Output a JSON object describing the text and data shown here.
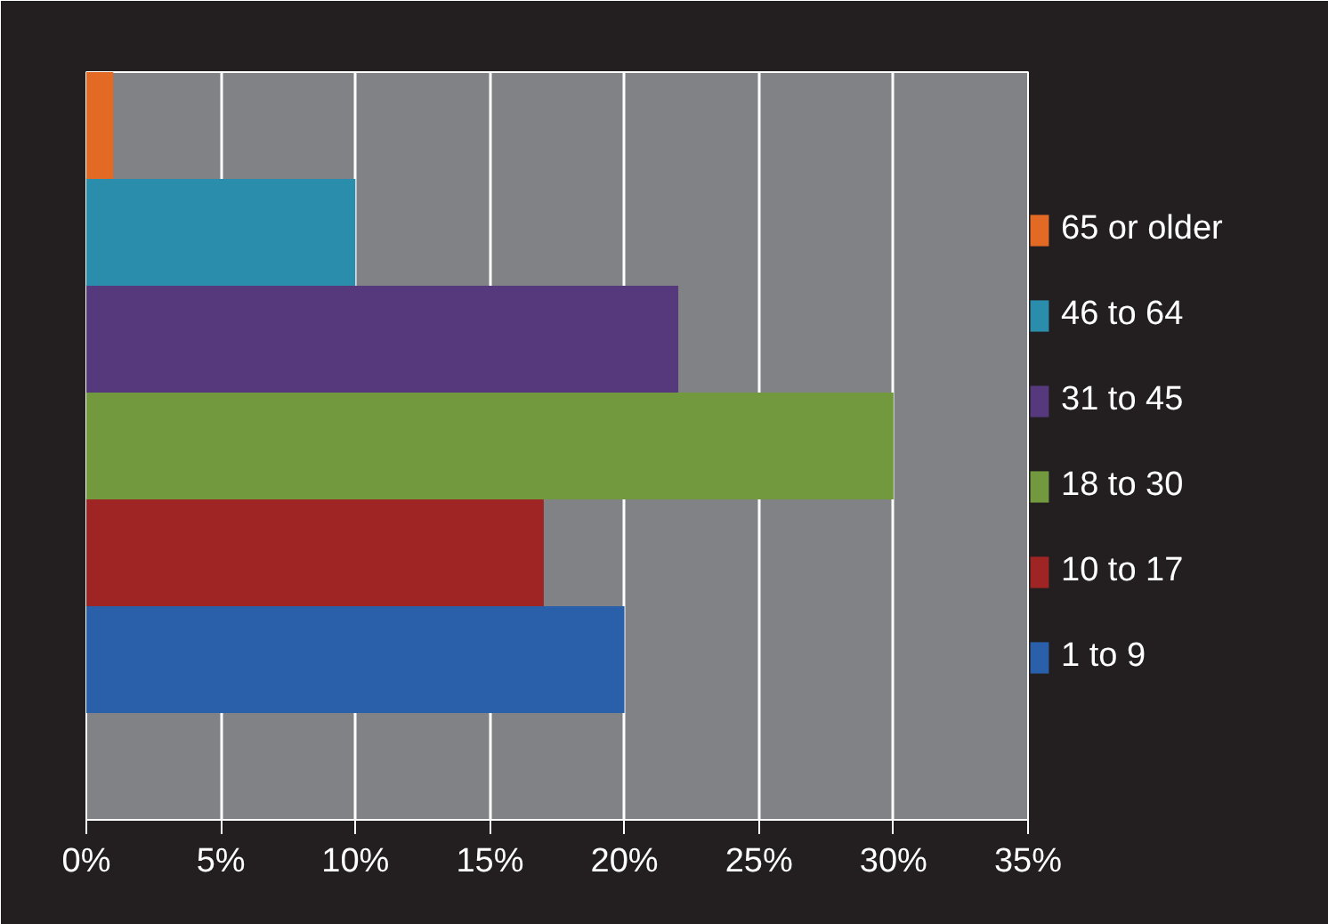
{
  "chart_data": {
    "type": "bar",
    "orientation": "horizontal",
    "categories": [
      null,
      null,
      null,
      null,
      null,
      null,
      null
    ],
    "series": [
      {
        "name": "65 or older",
        "color": "#e36a25",
        "values": [
          1,
          null,
          null,
          null,
          null,
          null,
          null
        ]
      },
      {
        "name": "46 to 64",
        "color": "#2a8dab",
        "values": [
          null,
          10,
          null,
          null,
          null,
          null,
          null
        ]
      },
      {
        "name": "31 to 45",
        "color": "#55397c",
        "values": [
          null,
          null,
          22,
          null,
          null,
          null,
          null
        ]
      },
      {
        "name": "18 to 30",
        "color": "#72993d",
        "values": [
          null,
          null,
          null,
          30,
          null,
          null,
          null
        ]
      },
      {
        "name": "10 to 17",
        "color": "#9e2524",
        "values": [
          null,
          null,
          null,
          null,
          17,
          null,
          null
        ]
      },
      {
        "name": "1 to 9",
        "color": "#2a5fa9",
        "values": [
          null,
          null,
          null,
          null,
          null,
          20,
          null
        ]
      }
    ],
    "xlim": [
      0,
      35
    ],
    "xticks": [
      {
        "value": 0,
        "label": "0%"
      },
      {
        "value": 5,
        "label": "5%"
      },
      {
        "value": 10,
        "label": "10%"
      },
      {
        "value": 15,
        "label": "15%"
      },
      {
        "value": 20,
        "label": "20%"
      },
      {
        "value": 25,
        "label": "25%"
      },
      {
        "value": 30,
        "label": "30%"
      },
      {
        "value": 35,
        "label": "35%"
      }
    ],
    "grid": "x",
    "legend": "right",
    "tick_labels": "x"
  }
}
